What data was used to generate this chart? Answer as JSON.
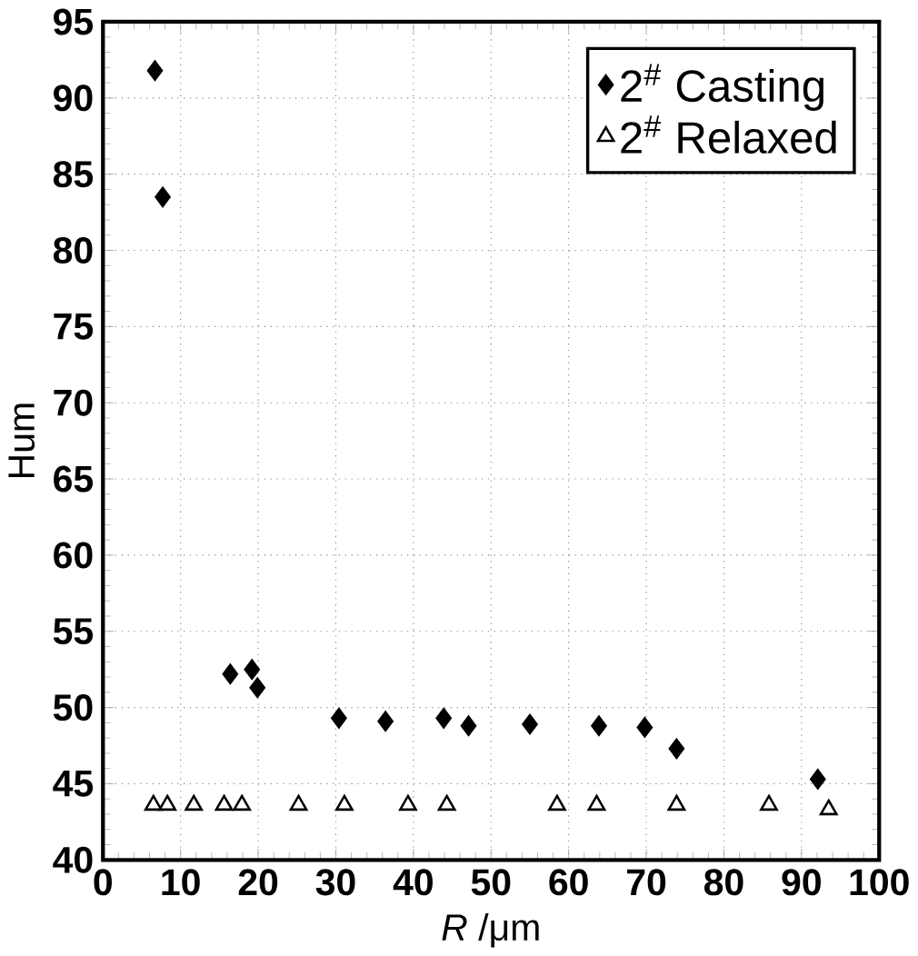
{
  "chart_data": {
    "type": "scatter",
    "xlabel": "*R* /μm",
    "ylabel": "Hum",
    "series": [
      {
        "name": "2$^{#}$ Casting",
        "color": "#000000",
        "marker": "diamond",
        "x": [
          6.7,
          7.7,
          16.4,
          19.2,
          19.9,
          30.4,
          36.4,
          43.9,
          47.1,
          55,
          63.9,
          69.8,
          73.9,
          92.1
        ],
        "values": [
          91.8,
          83.5,
          52.2,
          52.5,
          51.3,
          49.3,
          49.1,
          49.3,
          48.8,
          48.9,
          48.8,
          48.7,
          47.3,
          45.3
        ]
      },
      {
        "name": "2$^{#}$ Relaxed",
        "color": "#000000",
        "marker": "triangle",
        "x": [
          6.5,
          8.3,
          11.7,
          15.6,
          17.9,
          25.2,
          31.1,
          39.3,
          44.3,
          58.5,
          63.6,
          73.9,
          85.8,
          93.5
        ],
        "values": [
          43.6,
          43.6,
          43.6,
          43.6,
          43.6,
          43.6,
          43.6,
          43.6,
          43.6,
          43.6,
          43.6,
          43.6,
          43.6,
          43.3
        ]
      }
    ],
    "xlim": [
      0,
      100
    ],
    "xticks": [
      0,
      10,
      20,
      30,
      40,
      50,
      60,
      70,
      80,
      90,
      100
    ],
    "ylim": [
      40,
      95
    ],
    "yticks": [
      40,
      45,
      50,
      55,
      60,
      65,
      70,
      75,
      80,
      85,
      90,
      95
    ],
    "grid": true,
    "legend": "top right"
  }
}
